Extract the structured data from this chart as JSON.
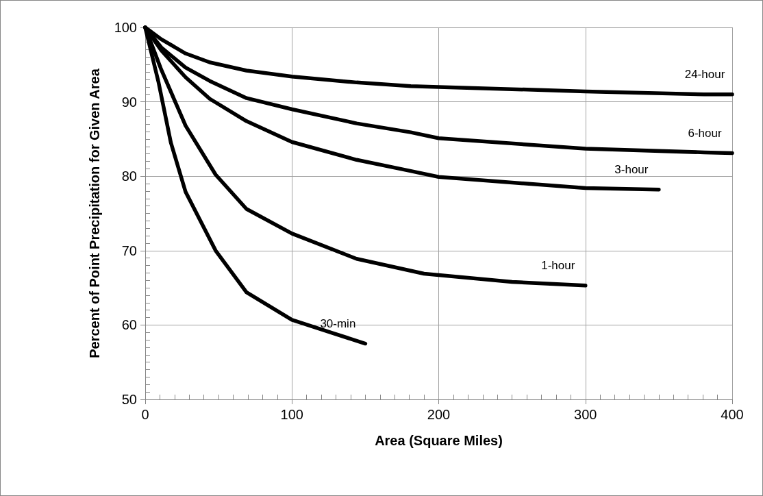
{
  "chart_data": {
    "type": "line",
    "xlabel": "Area (Square Miles)",
    "ylabel": "Percent of Point Precipitation for Given Area",
    "xlim": [
      0,
      400
    ],
    "ylim": [
      50,
      100
    ],
    "xticks": [
      0,
      {
        "value": 10,
        "label": null
      },
      {
        "value": 20,
        "label": null
      },
      {
        "value": 30,
        "label": null
      },
      {
        "value": 40,
        "label": null
      },
      {
        "value": 50,
        "label": null
      },
      {
        "value": 60,
        "label": null
      },
      {
        "value": 70,
        "label": null
      },
      {
        "value": 80,
        "label": null
      },
      {
        "value": 90,
        "label": null
      },
      100,
      {
        "value": 110,
        "label": null
      },
      {
        "value": 120,
        "label": null
      },
      {
        "value": 130,
        "label": null
      },
      {
        "value": 140,
        "label": null
      },
      {
        "value": 150,
        "label": null
      },
      {
        "value": 160,
        "label": null
      },
      {
        "value": 170,
        "label": null
      },
      {
        "value": 180,
        "label": null
      },
      {
        "value": 190,
        "label": null
      },
      200,
      {
        "value": 210,
        "label": null
      },
      {
        "value": 220,
        "label": null
      },
      {
        "value": 230,
        "label": null
      },
      {
        "value": 240,
        "label": null
      },
      {
        "value": 250,
        "label": null
      },
      {
        "value": 260,
        "label": null
      },
      {
        "value": 270,
        "label": null
      },
      {
        "value": 280,
        "label": null
      },
      {
        "value": 290,
        "label": null
      },
      300,
      {
        "value": 310,
        "label": null
      },
      {
        "value": 320,
        "label": null
      },
      {
        "value": 330,
        "label": null
      },
      {
        "value": 340,
        "label": null
      },
      {
        "value": 350,
        "label": null
      },
      {
        "value": 360,
        "label": null
      },
      {
        "value": 370,
        "label": null
      },
      {
        "value": 380,
        "label": null
      },
      {
        "value": 390,
        "label": null
      },
      400
    ],
    "yticks": [
      50,
      {
        "value": 51,
        "label": null
      },
      {
        "value": 52,
        "label": null
      },
      {
        "value": 53,
        "label": null
      },
      {
        "value": 54,
        "label": null
      },
      {
        "value": 55,
        "label": null
      },
      {
        "value": 56,
        "label": null
      },
      {
        "value": 57,
        "label": null
      },
      {
        "value": 58,
        "label": null
      },
      {
        "value": 59,
        "label": null
      },
      60,
      {
        "value": 61,
        "label": null
      },
      {
        "value": 62,
        "label": null
      },
      {
        "value": 63,
        "label": null
      },
      {
        "value": 64,
        "label": null
      },
      {
        "value": 65,
        "label": null
      },
      {
        "value": 66,
        "label": null
      },
      {
        "value": 67,
        "label": null
      },
      {
        "value": 68,
        "label": null
      },
      {
        "value": 69,
        "label": null
      },
      70,
      {
        "value": 71,
        "label": null
      },
      {
        "value": 72,
        "label": null
      },
      {
        "value": 73,
        "label": null
      },
      {
        "value": 74,
        "label": null
      },
      {
        "value": 75,
        "label": null
      },
      {
        "value": 76,
        "label": null
      },
      {
        "value": 77,
        "label": null
      },
      {
        "value": 78,
        "label": null
      },
      {
        "value": 79,
        "label": null
      },
      80,
      {
        "value": 81,
        "label": null
      },
      {
        "value": 82,
        "label": null
      },
      {
        "value": 83,
        "label": null
      },
      {
        "value": 84,
        "label": null
      },
      {
        "value": 85,
        "label": null
      },
      {
        "value": 86,
        "label": null
      },
      {
        "value": 87,
        "label": null
      },
      {
        "value": 88,
        "label": null
      },
      {
        "value": 89,
        "label": null
      },
      90,
      {
        "value": 91,
        "label": null
      },
      {
        "value": 92,
        "label": null
      },
      {
        "value": 93,
        "label": null
      },
      {
        "value": 94,
        "label": null
      },
      {
        "value": 95,
        "label": null
      },
      {
        "value": 96,
        "label": null
      },
      {
        "value": 97,
        "label": null
      },
      {
        "value": 98,
        "label": null
      },
      {
        "value": 99,
        "label": null
      },
      100
    ],
    "grid": true,
    "legend": false,
    "marker": "none",
    "line_style": "solid",
    "series": [
      {
        "name": "24-hour",
        "color": "#000000",
        "x": [
          0,
          11,
          27.5,
          44,
          69,
          100,
          144,
          181,
          200,
          300,
          381,
          400
        ],
        "values": [
          100,
          98.4,
          96.5,
          95.3,
          94.2,
          93.4,
          92.6,
          92.1,
          92,
          91.4,
          91,
          91
        ]
      },
      {
        "name": "6-hour",
        "color": "#000000",
        "x": [
          0,
          11,
          27.5,
          44,
          69,
          100,
          144,
          181,
          200,
          300,
          381,
          400
        ],
        "values": [
          100,
          97.3,
          94.6,
          92.8,
          90.5,
          89,
          87.1,
          85.9,
          85.1,
          83.7,
          83.2,
          83.1
        ]
      },
      {
        "name": "3-hour",
        "color": "#000000",
        "x": [
          0,
          11,
          27.5,
          44,
          69,
          100,
          144,
          181,
          200,
          300,
          350
        ],
        "values": [
          100,
          96.9,
          93.3,
          90.4,
          87.4,
          84.6,
          82.2,
          80.7,
          79.9,
          78.4,
          78.2
        ]
      },
      {
        "name": "1-hour",
        "color": "#000000",
        "x": [
          0,
          11,
          27.5,
          48,
          69,
          100,
          144,
          190,
          250,
          300
        ],
        "values": [
          100,
          94.3,
          86.8,
          80.2,
          75.6,
          72.3,
          68.9,
          66.9,
          65.8,
          65.3
        ]
      },
      {
        "name": "30-min",
        "color": "#000000",
        "x": [
          0,
          9,
          17.5,
          27.5,
          48,
          69,
          100,
          128,
          150
        ],
        "values": [
          100,
          92.7,
          84.5,
          77.9,
          70,
          64.4,
          60.7,
          58.9,
          57.5
        ]
      }
    ]
  }
}
